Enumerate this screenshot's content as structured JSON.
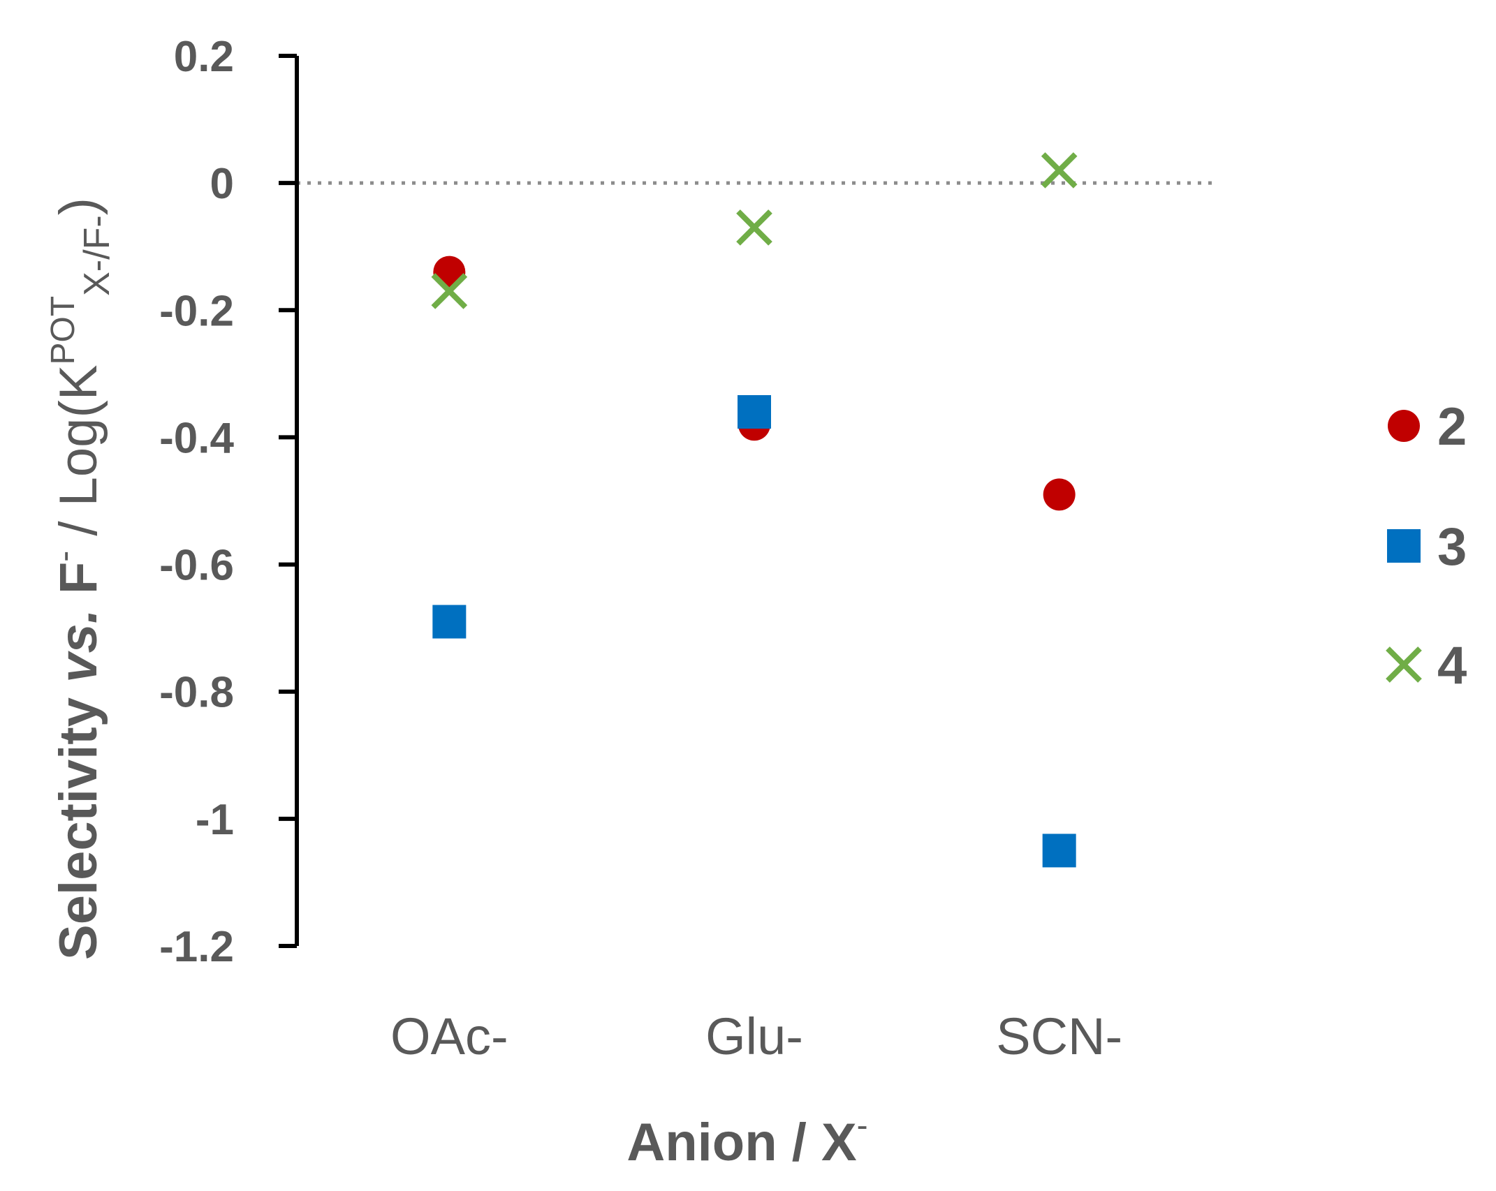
{
  "chart_data": {
    "type": "scatter",
    "categories": [
      "OAc-",
      "Glu-",
      "SCN-"
    ],
    "ylim": [
      -1.2,
      0.2
    ],
    "yticks": [
      "0.2",
      "0",
      "-0.2",
      "-0.4",
      "-0.6",
      "-0.8",
      "-1",
      "-1.2"
    ],
    "ytick_values": [
      0.2,
      0,
      -0.2,
      -0.4,
      -0.6,
      -0.8,
      -1,
      -1.2
    ],
    "xlabel_main": "Anion / X",
    "xlabel_sup": "-",
    "ylabel_main": "Selectivity ",
    "ylabel_vs": "vs.",
    "ylabel_f": " F",
    "ylabel_f_sup": "-",
    "ylabel_log": "  / Log(K",
    "ylabel_pot": "POT",
    "ylabel_sub": "X-/F-",
    "ylabel_close": ")",
    "zero_reference_line": true,
    "legend_position": "right",
    "series": [
      {
        "name": "2",
        "marker": "circle",
        "color": "#C00000",
        "values": [
          -0.14,
          -0.38,
          -0.49
        ]
      },
      {
        "name": "3",
        "marker": "square",
        "color": "#0070C0",
        "values": [
          -0.69,
          -0.36,
          -1.05
        ]
      },
      {
        "name": "4",
        "marker": "x",
        "color": "#70AD47",
        "values": [
          -0.17,
          -0.07,
          0.02
        ]
      }
    ]
  }
}
